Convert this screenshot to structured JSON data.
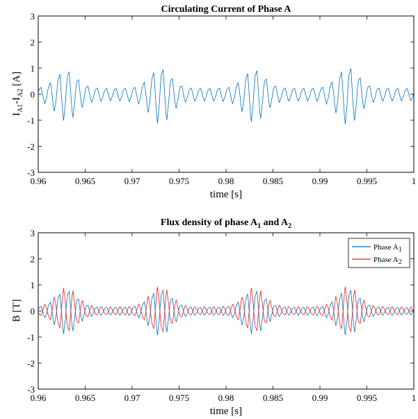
{
  "colors": {
    "phase_a1": "#0072BD",
    "phase_a2": "#E81C1C",
    "axes": "#000000",
    "background": "#FFFFFF"
  },
  "chart_data": [
    {
      "type": "line",
      "title": "Circulating Current of Phase A",
      "xlabel": "time [s]",
      "ylabel": {
        "main_1": "I",
        "sub_1": "A1",
        "main_2": "-I",
        "sub_2": "A2",
        "unit": " [A]"
      },
      "xlim": [
        0.96,
        1.0
      ],
      "ylim": [
        -3,
        3
      ],
      "xticks": [
        "0.96",
        "0.965",
        "0.97",
        "0.975",
        "0.98",
        "0.985",
        "0.99",
        "0.995",
        "1"
      ],
      "yticks": [
        "3",
        "2",
        "1",
        "0",
        "-1",
        "-2",
        "-3"
      ],
      "grid": false,
      "legend": false,
      "series": [
        {
          "color": "#0072BD",
          "carrier_frequency_hz": 1000,
          "sample_step_s": 0.0001,
          "burst_centers_s": [
            0.963,
            0.973,
            0.983,
            0.993
          ],
          "peak_amplitude": [
            1.02,
            1.13,
            1.07,
            1.17
          ],
          "baseline_amplitude": 0.25
        }
      ]
    },
    {
      "type": "line",
      "title": {
        "prefix": "Flux density of phase A",
        "sub_1": "1",
        "mid": " and A",
        "sub_2": "2"
      },
      "xlabel": "time [s]",
      "ylabel": "B [T]",
      "xlim": [
        0.96,
        1.0
      ],
      "ylim": [
        -3,
        3
      ],
      "xticks": [
        "0.96",
        "0.965",
        "0.97",
        "0.975",
        "0.98",
        "0.985",
        "0.99",
        "0.995",
        "1"
      ],
      "yticks": [
        "3",
        "2",
        "1",
        "0",
        "-1",
        "-2",
        "-3"
      ],
      "grid": false,
      "legend": "top-right",
      "series": [
        {
          "name": {
            "main": "Phase A",
            "sub": "1"
          },
          "color": "#0072BD",
          "carrier_frequency_hz": 1000,
          "sample_step_s": 0.0001,
          "burst_centers_s": [
            0.963,
            0.973,
            0.983,
            0.993
          ],
          "peak_amplitude": [
            0.88,
            0.93,
            0.88,
            0.93
          ],
          "baseline_amplitude": 0.15
        },
        {
          "name": {
            "main": "Phase A",
            "sub": "2"
          },
          "color": "#E81C1C",
          "carrier_frequency_hz": 1000,
          "sample_step_s": 0.0001,
          "burst_centers_s": [
            0.963,
            0.973,
            0.983,
            0.993
          ],
          "peak_amplitude": [
            0.88,
            0.93,
            0.88,
            0.93
          ],
          "baseline_amplitude": 0.15
        }
      ]
    }
  ]
}
